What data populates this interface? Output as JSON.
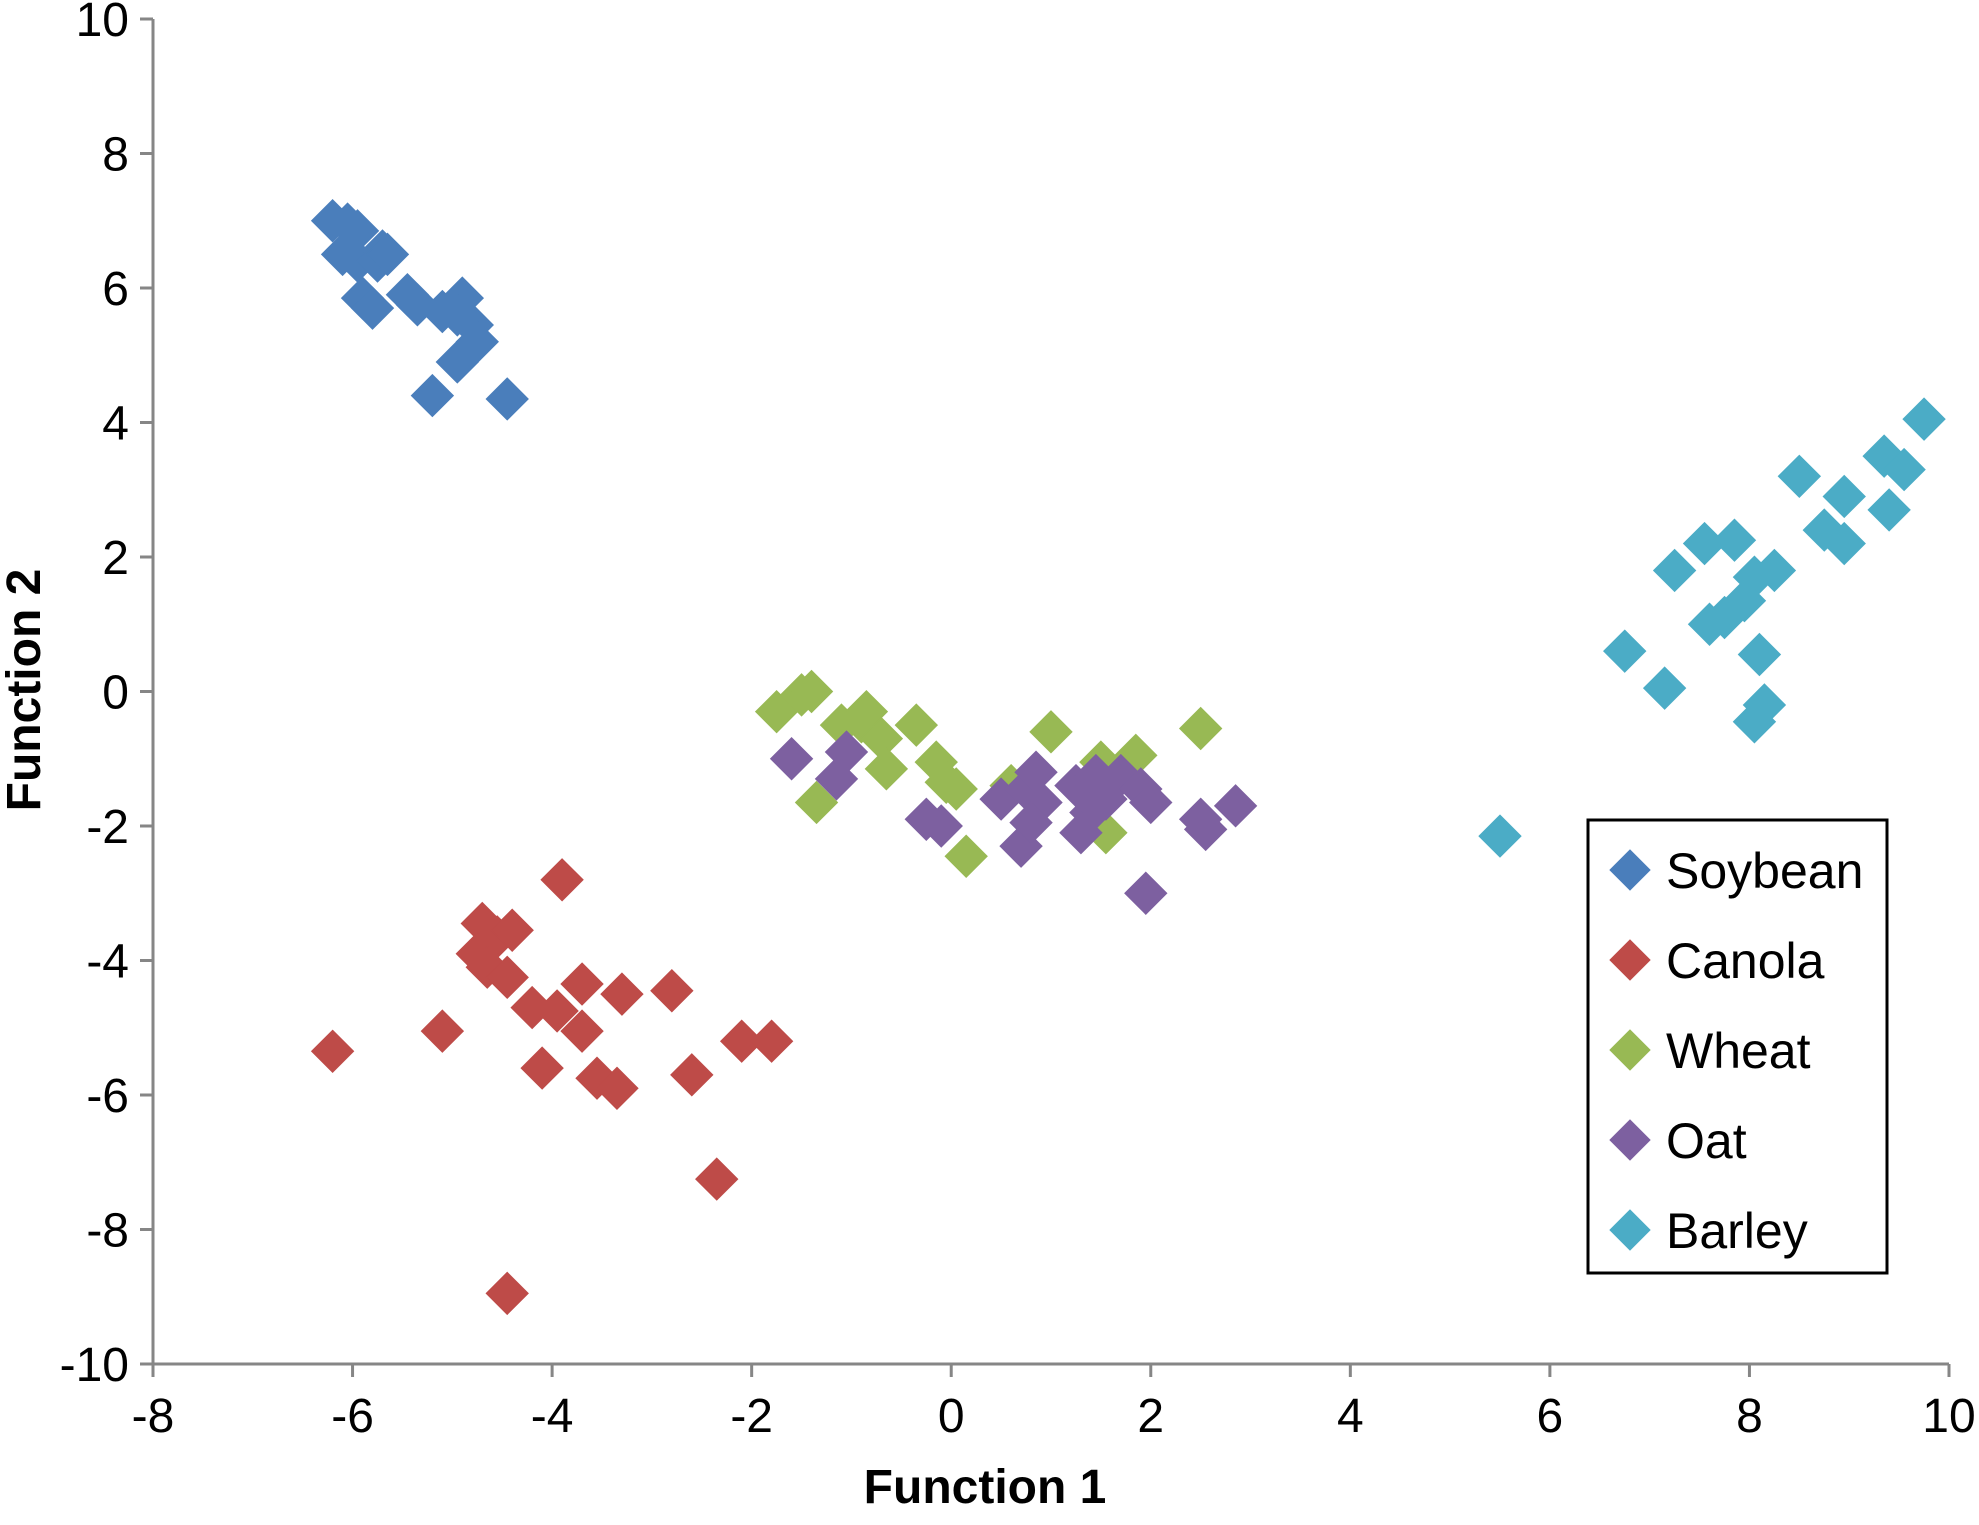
{
  "chart_data": {
    "type": "scatter",
    "title": "",
    "xlabel": "Function 1",
    "ylabel": "Function 2",
    "xlim": [
      -8,
      10
    ],
    "ylim": [
      -10,
      10
    ],
    "x_ticks": [
      "-8",
      "-6",
      "-4",
      "-2",
      "0",
      "2",
      "4",
      "6",
      "8",
      "10"
    ],
    "y_ticks": [
      "10",
      "8",
      "6",
      "4",
      "2",
      "0",
      "-2",
      "-4",
      "-6",
      "-8",
      "-10"
    ],
    "grid": false,
    "legend_position": "right",
    "marker": "diamond",
    "series": [
      {
        "name": "Soybean",
        "color": "#4a7ebb",
        "points": [
          [
            -6.2,
            7.0
          ],
          [
            -6.05,
            6.95
          ],
          [
            -5.95,
            6.85
          ],
          [
            -6.1,
            6.5
          ],
          [
            -5.95,
            6.4
          ],
          [
            -5.7,
            6.55
          ],
          [
            -5.75,
            6.4
          ],
          [
            -5.65,
            6.5
          ],
          [
            -5.9,
            5.85
          ],
          [
            -5.8,
            5.7
          ],
          [
            -5.45,
            5.9
          ],
          [
            -5.35,
            5.75
          ],
          [
            -5.1,
            5.65
          ],
          [
            -4.9,
            5.85
          ],
          [
            -4.95,
            5.6
          ],
          [
            -4.8,
            5.45
          ],
          [
            -4.75,
            5.2
          ],
          [
            -4.95,
            4.9
          ],
          [
            -5.2,
            4.4
          ],
          [
            -4.45,
            4.35
          ]
        ]
      },
      {
        "name": "Canola",
        "color": "#be4b48",
        "points": [
          [
            -3.9,
            -2.8
          ],
          [
            -4.7,
            -3.45
          ],
          [
            -4.55,
            -3.65
          ],
          [
            -4.4,
            -3.55
          ],
          [
            -4.75,
            -3.9
          ],
          [
            -4.65,
            -4.1
          ],
          [
            -4.45,
            -4.25
          ],
          [
            -3.7,
            -4.35
          ],
          [
            -3.3,
            -4.5
          ],
          [
            -2.8,
            -4.45
          ],
          [
            -4.2,
            -4.7
          ],
          [
            -3.95,
            -4.75
          ],
          [
            -3.7,
            -5.05
          ],
          [
            -5.1,
            -5.05
          ],
          [
            -6.2,
            -5.35
          ],
          [
            -2.1,
            -5.2
          ],
          [
            -1.8,
            -5.2
          ],
          [
            -4.1,
            -5.6
          ],
          [
            -3.55,
            -5.75
          ],
          [
            -3.35,
            -5.9
          ],
          [
            -2.6,
            -5.7
          ],
          [
            -2.35,
            -7.25
          ],
          [
            -4.45,
            -8.95
          ]
        ]
      },
      {
        "name": "Wheat",
        "color": "#98b954",
        "points": [
          [
            -1.75,
            -0.3
          ],
          [
            -1.5,
            -0.05
          ],
          [
            -1.4,
            0.0
          ],
          [
            -1.1,
            -0.5
          ],
          [
            -0.9,
            -0.45
          ],
          [
            -0.85,
            -0.3
          ],
          [
            -0.7,
            -0.7
          ],
          [
            -0.35,
            -0.5
          ],
          [
            -0.65,
            -1.15
          ],
          [
            -0.15,
            -1.05
          ],
          [
            -0.05,
            -1.35
          ],
          [
            0.05,
            -1.45
          ],
          [
            -1.35,
            -1.65
          ],
          [
            0.15,
            -2.45
          ],
          [
            1.0,
            -0.6
          ],
          [
            1.5,
            -1.05
          ],
          [
            1.85,
            -0.95
          ],
          [
            2.5,
            -0.55
          ],
          [
            1.55,
            -2.1
          ],
          [
            0.6,
            -1.4
          ]
        ]
      },
      {
        "name": "Oat",
        "color": "#7d60a0",
        "points": [
          [
            -1.6,
            -1.0
          ],
          [
            -1.05,
            -0.9
          ],
          [
            -1.15,
            -1.3
          ],
          [
            -0.25,
            -1.9
          ],
          [
            -0.1,
            -2.0
          ],
          [
            0.5,
            -1.6
          ],
          [
            0.75,
            -1.45
          ],
          [
            0.85,
            -1.2
          ],
          [
            0.9,
            -1.65
          ],
          [
            0.7,
            -2.3
          ],
          [
            0.8,
            -1.95
          ],
          [
            1.25,
            -1.4
          ],
          [
            1.45,
            -1.25
          ],
          [
            1.55,
            -1.6
          ],
          [
            1.4,
            -1.8
          ],
          [
            1.3,
            -2.1
          ],
          [
            1.7,
            -1.25
          ],
          [
            1.9,
            -1.45
          ],
          [
            2.0,
            -1.65
          ],
          [
            1.95,
            -3.0
          ],
          [
            2.5,
            -1.9
          ],
          [
            2.55,
            -2.05
          ],
          [
            2.85,
            -1.7
          ]
        ]
      },
      {
        "name": "Barley",
        "color": "#4bacc6",
        "points": [
          [
            9.75,
            4.05
          ],
          [
            9.35,
            3.5
          ],
          [
            9.55,
            3.3
          ],
          [
            8.5,
            3.2
          ],
          [
            9.4,
            2.7
          ],
          [
            8.95,
            2.9
          ],
          [
            8.75,
            2.4
          ],
          [
            8.95,
            2.2
          ],
          [
            7.55,
            2.2
          ],
          [
            7.85,
            2.25
          ],
          [
            7.25,
            1.8
          ],
          [
            8.25,
            1.8
          ],
          [
            8.05,
            1.7
          ],
          [
            7.95,
            1.35
          ],
          [
            7.75,
            1.1
          ],
          [
            7.6,
            1.0
          ],
          [
            6.75,
            0.6
          ],
          [
            7.15,
            0.05
          ],
          [
            8.1,
            0.55
          ],
          [
            8.15,
            -0.2
          ],
          [
            8.05,
            -0.45
          ],
          [
            5.5,
            -2.15
          ]
        ]
      }
    ]
  }
}
